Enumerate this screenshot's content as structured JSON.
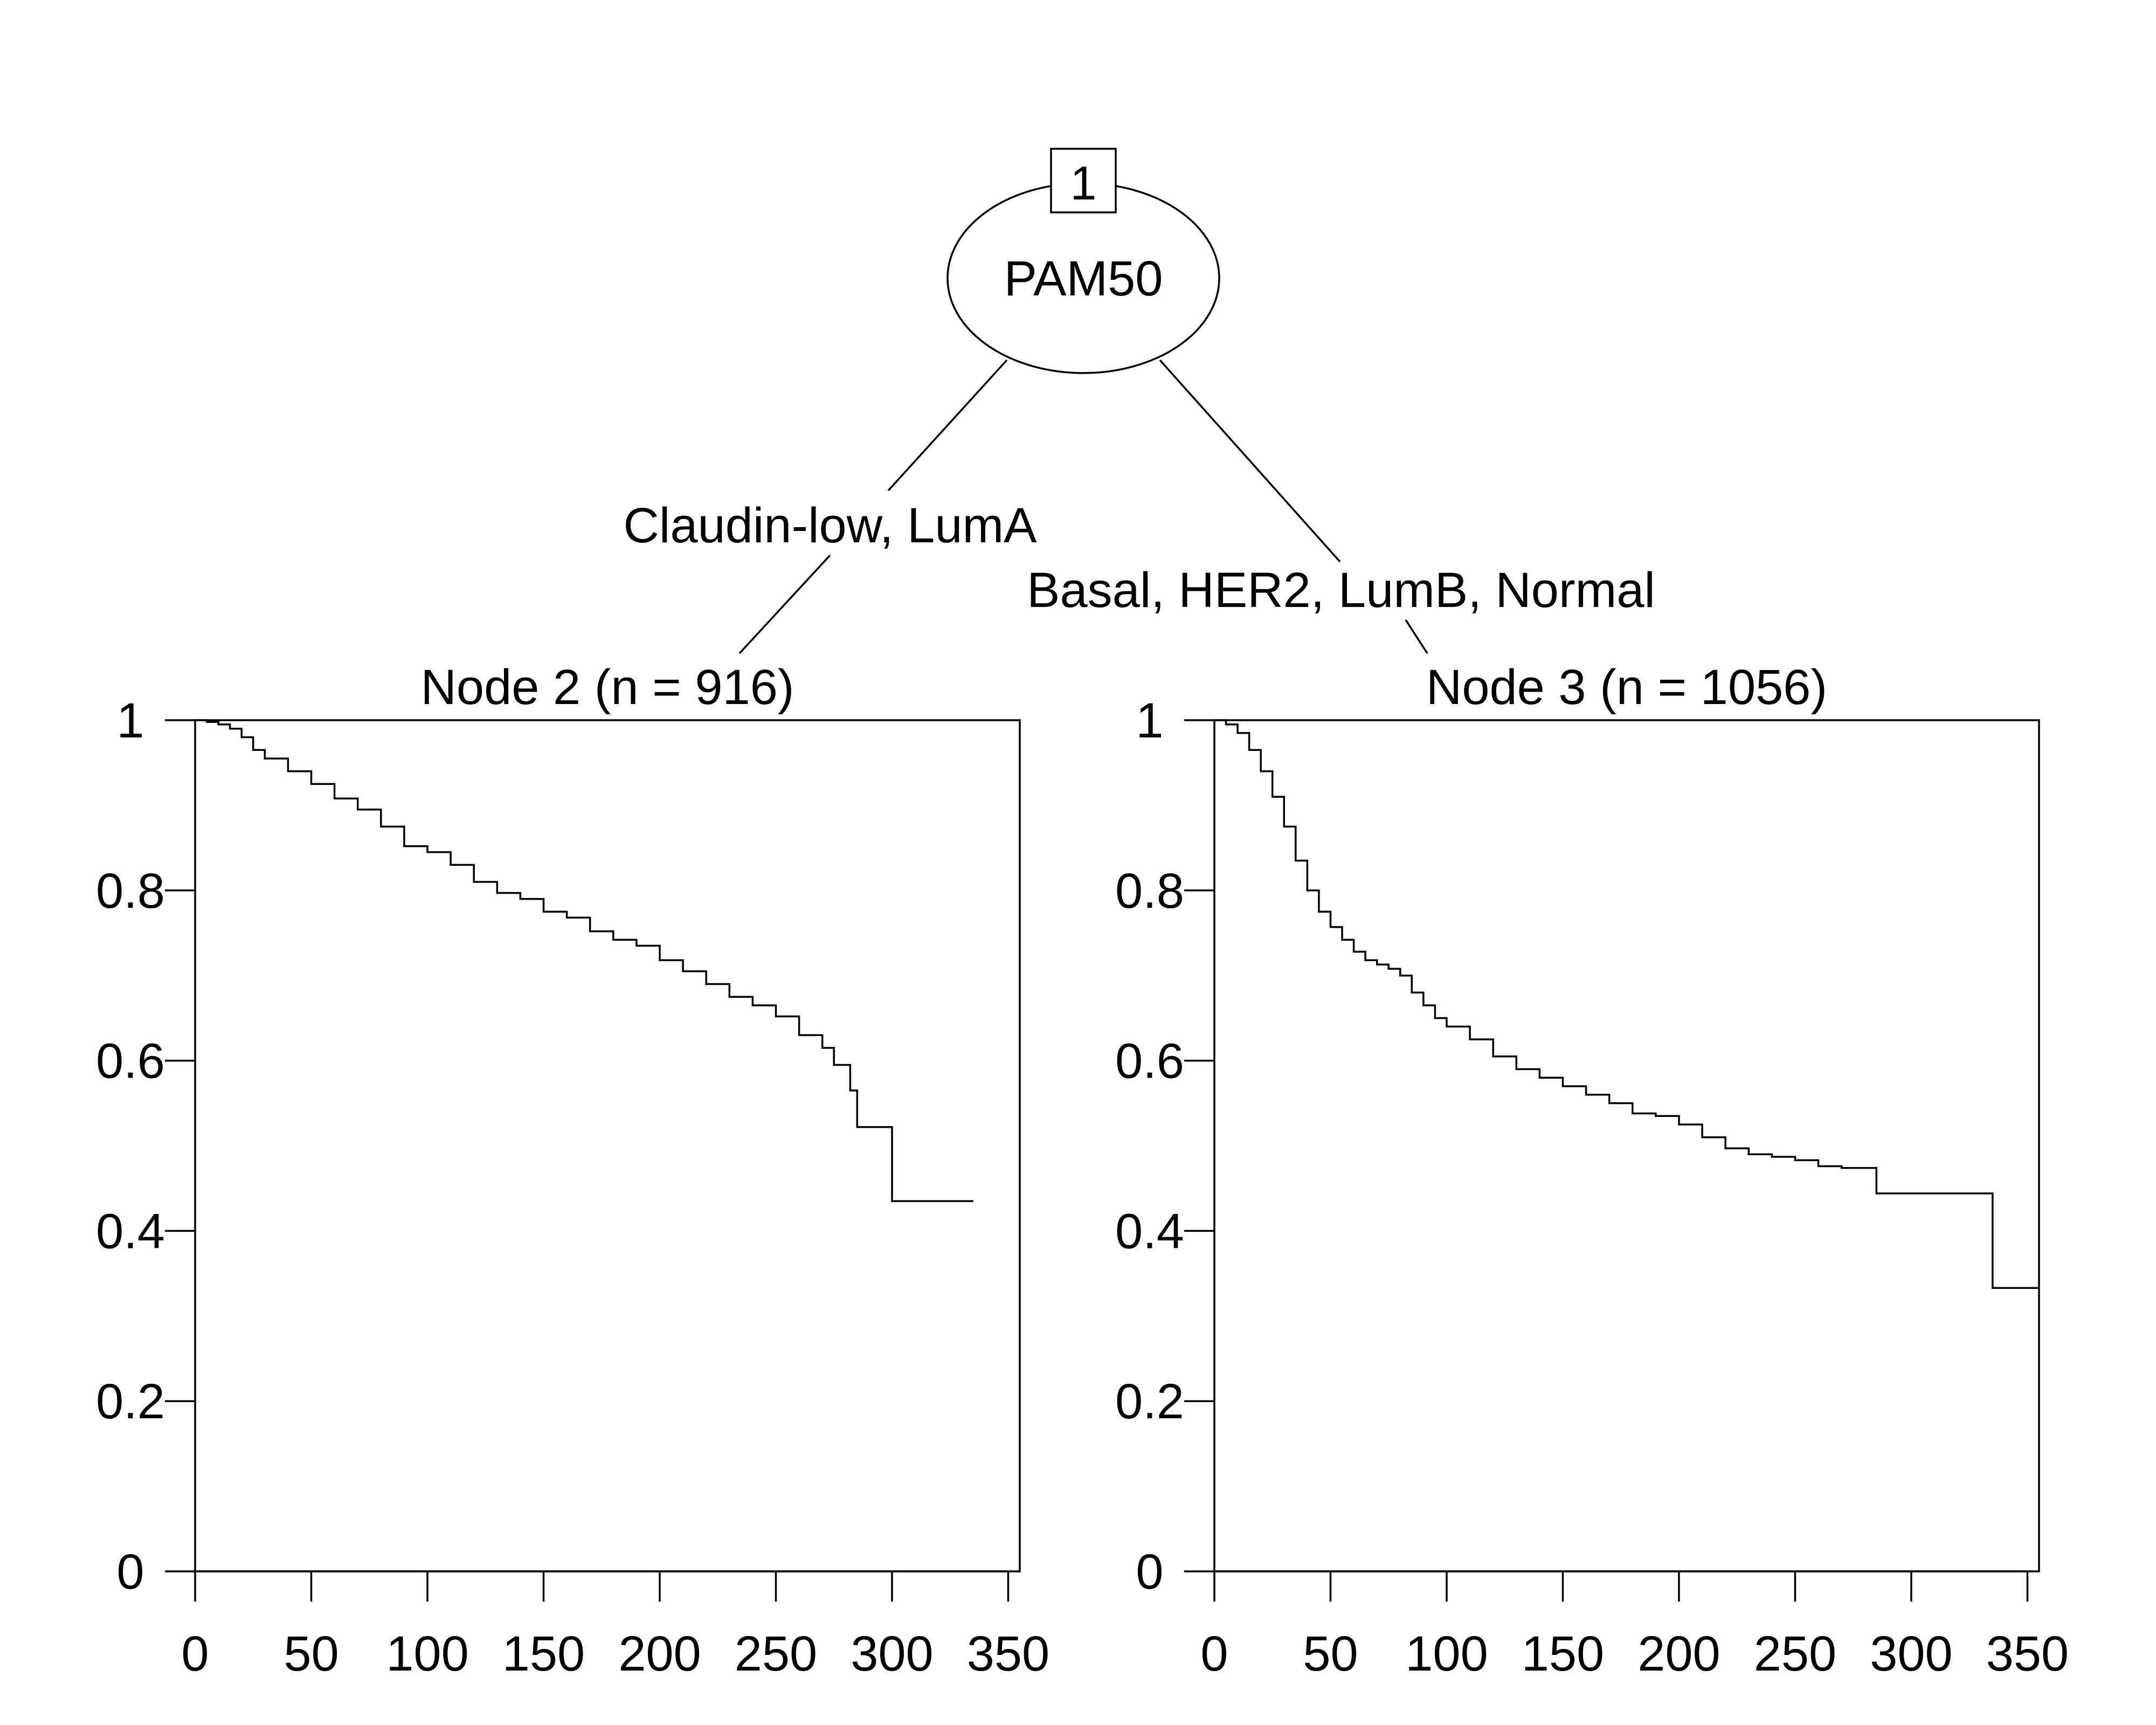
{
  "tree": {
    "root": {
      "id": "1",
      "label": "PAM50"
    },
    "edges": [
      {
        "label": "Claudin-low, LumA"
      },
      {
        "label": "Basal, HER2, LumB, Normal"
      }
    ]
  },
  "chart_data": [
    {
      "type": "line",
      "title": "Node 2 (n = 916)",
      "xlabel": "",
      "ylabel": "",
      "xlim": [
        0,
        355
      ],
      "ylim": [
        0,
        1
      ],
      "xticks": [
        0,
        50,
        100,
        150,
        200,
        250,
        300,
        350
      ],
      "yticks": [
        0,
        0.2,
        0.4,
        0.6,
        0.8,
        1
      ],
      "ytick_labels": [
        "0",
        "0.2",
        "0.4",
        "0.6",
        "0.8",
        "1"
      ],
      "step": true,
      "series": [
        {
          "x": [
            0,
            5,
            10,
            15,
            20,
            25,
            30,
            40,
            50,
            60,
            70,
            80,
            90,
            100,
            110,
            120,
            130,
            140,
            150,
            160,
            170,
            180,
            190,
            200,
            210,
            220,
            230,
            240,
            250,
            260,
            265,
            270,
            275,
            280,
            282,
            285,
            300,
            335
          ],
          "y": [
            1.0,
            0.998,
            0.995,
            0.99,
            0.98,
            0.965,
            0.955,
            0.94,
            0.925,
            0.908,
            0.895,
            0.875,
            0.852,
            0.845,
            0.83,
            0.81,
            0.797,
            0.79,
            0.775,
            0.768,
            0.752,
            0.742,
            0.735,
            0.718,
            0.705,
            0.69,
            0.675,
            0.665,
            0.652,
            0.63,
            0.63,
            0.615,
            0.595,
            0.595,
            0.565,
            0.522,
            0.435,
            0.435
          ]
        }
      ]
    },
    {
      "type": "line",
      "title": "Node 3 (n = 1056)",
      "xlabel": "",
      "ylabel": "",
      "xlim": [
        0,
        355
      ],
      "ylim": [
        0,
        1
      ],
      "xticks": [
        0,
        50,
        100,
        150,
        200,
        250,
        300,
        350
      ],
      "yticks": [
        0,
        0.2,
        0.4,
        0.6,
        0.8,
        1
      ],
      "ytick_labels": [
        "0",
        "0.2",
        "0.4",
        "0.6",
        "0.8",
        "1"
      ],
      "step": true,
      "series": [
        {
          "x": [
            0,
            5,
            10,
            15,
            20,
            25,
            30,
            35,
            40,
            45,
            50,
            55,
            60,
            65,
            70,
            75,
            80,
            85,
            90,
            95,
            100,
            110,
            120,
            130,
            140,
            150,
            160,
            170,
            180,
            190,
            200,
            210,
            220,
            230,
            240,
            250,
            260,
            270,
            285,
            300,
            320,
            335,
            355
          ],
          "y": [
            1.0,
            0.995,
            0.985,
            0.965,
            0.94,
            0.91,
            0.875,
            0.835,
            0.8,
            0.775,
            0.757,
            0.742,
            0.728,
            0.718,
            0.713,
            0.708,
            0.7,
            0.68,
            0.665,
            0.65,
            0.64,
            0.625,
            0.605,
            0.59,
            0.58,
            0.57,
            0.56,
            0.55,
            0.538,
            0.535,
            0.525,
            0.51,
            0.497,
            0.49,
            0.487,
            0.483,
            0.476,
            0.474,
            0.444,
            0.444,
            0.444,
            0.333,
            0.333
          ]
        }
      ]
    }
  ]
}
